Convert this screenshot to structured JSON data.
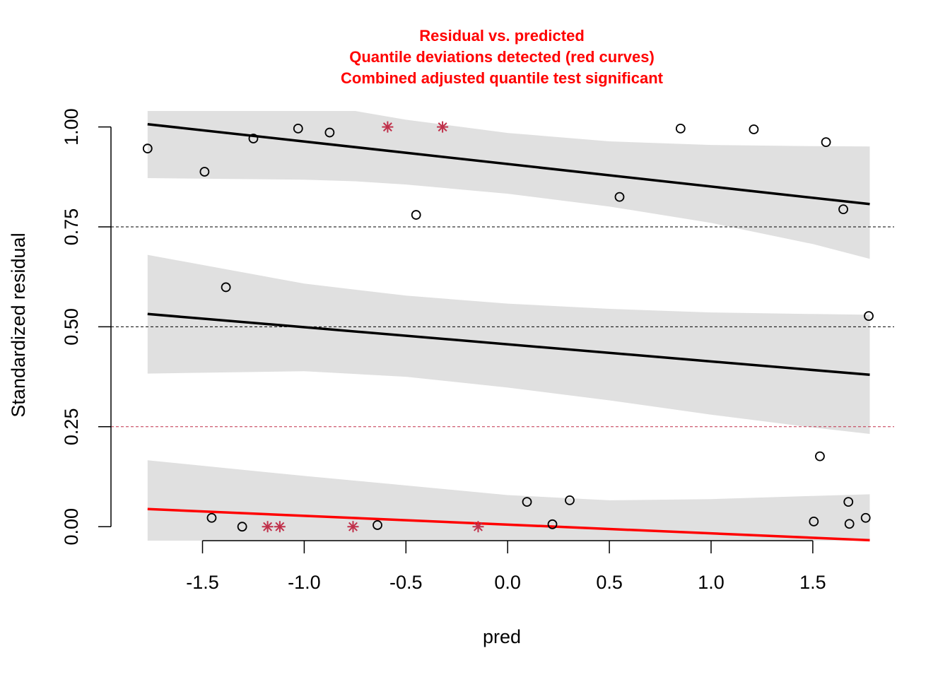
{
  "chart_data": {
    "type": "scatter",
    "title_lines": [
      "Residual vs. predicted",
      "Quantile deviations detected (red curves)",
      "Combined adjusted quantile test significant"
    ],
    "xlabel": "pred",
    "ylabel": "Standardized residual",
    "xlim": [
      -1.95,
      1.9
    ],
    "ylim": [
      -0.035,
      1.04
    ],
    "x_ticks": [
      "-1.5",
      "-1.0",
      "-0.5",
      "0.0",
      "0.5",
      "1.0",
      "1.5"
    ],
    "x_tick_values": [
      -1.5,
      -1.0,
      -0.5,
      0.0,
      0.5,
      1.0,
      1.5
    ],
    "y_ticks": [
      "0.00",
      "0.25",
      "0.50",
      "0.75",
      "1.00"
    ],
    "y_tick_values": [
      0.0,
      0.25,
      0.5,
      0.75,
      1.0
    ],
    "reference_lines": [
      {
        "y": 0.25,
        "color": "#c0304a",
        "style": "dashed"
      },
      {
        "y": 0.5,
        "color": "#000000",
        "style": "dashed"
      },
      {
        "y": 0.75,
        "color": "#000000",
        "style": "dashed"
      }
    ],
    "colors": {
      "point": "#000000",
      "outlier": "#c0304a",
      "band": "#e0e0e0",
      "fit_ok": "#000000",
      "fit_deviation": "#ff0000",
      "title": "#ff0000"
    },
    "quantile_fits": [
      {
        "quantile": 0.25,
        "deviation": true,
        "x": [
          -1.77,
          1.78
        ],
        "y": [
          0.044,
          -0.034
        ]
      },
      {
        "quantile": 0.5,
        "deviation": false,
        "x": [
          -1.77,
          1.78
        ],
        "y": [
          0.532,
          0.38
        ]
      },
      {
        "quantile": 0.75,
        "deviation": false,
        "x": [
          -1.77,
          1.78
        ],
        "y": [
          1.007,
          0.807
        ]
      }
    ],
    "confidence_bands": [
      {
        "quantile": 0.25,
        "x": [
          -1.77,
          -1.0,
          -0.5,
          0.0,
          0.5,
          1.0,
          1.5,
          1.78
        ],
        "upper": [
          0.166,
          0.127,
          0.103,
          0.079,
          0.066,
          0.069,
          0.077,
          0.081
        ],
        "lower": [
          -0.04,
          -0.04,
          -0.04,
          -0.04,
          -0.04,
          -0.04,
          -0.04,
          -0.04
        ]
      },
      {
        "quantile": 0.5,
        "x": [
          -1.77,
          -1.0,
          -0.5,
          0.0,
          0.5,
          1.0,
          1.5,
          1.78
        ],
        "upper": [
          0.68,
          0.608,
          0.578,
          0.558,
          0.545,
          0.536,
          0.532,
          0.53
        ],
        "lower": [
          0.383,
          0.389,
          0.375,
          0.348,
          0.316,
          0.28,
          0.248,
          0.232
        ]
      },
      {
        "quantile": 0.75,
        "x": [
          -1.77,
          -1.0,
          -0.75,
          -0.5,
          0.0,
          0.5,
          1.0,
          1.5,
          1.78
        ],
        "upper": [
          1.04,
          1.04,
          1.04,
          1.018,
          0.985,
          0.964,
          0.955,
          0.952,
          0.951
        ],
        "lower": [
          0.872,
          0.868,
          0.864,
          0.856,
          0.833,
          0.801,
          0.76,
          0.707,
          0.67
        ]
      }
    ],
    "points": [
      {
        "x": -1.77,
        "y": 0.946
      },
      {
        "x": -1.49,
        "y": 0.888
      },
      {
        "x": -1.25,
        "y": 0.971
      },
      {
        "x": -1.03,
        "y": 0.996
      },
      {
        "x": -0.875,
        "y": 0.986
      },
      {
        "x": -0.45,
        "y": 0.78
      },
      {
        "x": 0.55,
        "y": 0.825
      },
      {
        "x": 0.85,
        "y": 0.996
      },
      {
        "x": 1.21,
        "y": 0.994
      },
      {
        "x": 1.565,
        "y": 0.962
      },
      {
        "x": 1.65,
        "y": 0.794
      },
      {
        "x": -1.385,
        "y": 0.599
      },
      {
        "x": 1.775,
        "y": 0.527
      },
      {
        "x": 1.535,
        "y": 0.176
      },
      {
        "x": -1.455,
        "y": 0.022
      },
      {
        "x": -1.305,
        "y": 0.0
      },
      {
        "x": -0.64,
        "y": 0.004
      },
      {
        "x": 0.095,
        "y": 0.062
      },
      {
        "x": 0.22,
        "y": 0.006
      },
      {
        "x": 0.305,
        "y": 0.066
      },
      {
        "x": 1.505,
        "y": 0.013
      },
      {
        "x": 1.675,
        "y": 0.062
      },
      {
        "x": 1.68,
        "y": 0.007
      },
      {
        "x": 1.76,
        "y": 0.022
      }
    ],
    "outlier_points": [
      {
        "x": -0.59,
        "y": 1.0
      },
      {
        "x": -0.32,
        "y": 1.0
      },
      {
        "x": -1.18,
        "y": 0.0
      },
      {
        "x": -1.12,
        "y": 0.0
      },
      {
        "x": -0.76,
        "y": 0.0
      },
      {
        "x": -0.145,
        "y": 0.0
      }
    ]
  }
}
